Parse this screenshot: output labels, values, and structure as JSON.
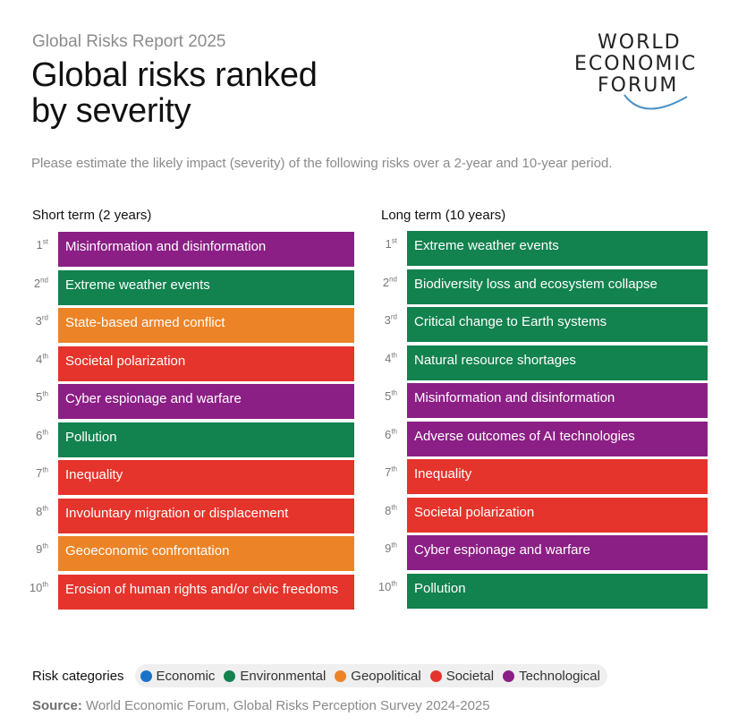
{
  "header": {
    "report_label": "Global Risks Report 2025",
    "title_line1": "Global risks ranked",
    "title_line2": "by severity",
    "subtitle": "Please estimate the likely impact (severity) of the following risks over a 2-year and 10-year period."
  },
  "logo": {
    "line1": "WORLD",
    "line2": "ECONOMIC",
    "line3": "FORUM"
  },
  "colors": {
    "Economic": "#1a73c7",
    "Environmental": "#12824f",
    "Geopolitical": "#ec8427",
    "Societal": "#e5342b",
    "Technological": "#8b1f85"
  },
  "chart_data": {
    "type": "table",
    "title": "Global risks ranked by severity",
    "columns": [
      {
        "key": "short",
        "heading": "Short term (2 years)",
        "rows": [
          {
            "rank": "1",
            "suffix": "st",
            "label": "Misinformation and disinformation",
            "category": "Technological"
          },
          {
            "rank": "2",
            "suffix": "nd",
            "label": "Extreme weather events",
            "category": "Environmental"
          },
          {
            "rank": "3",
            "suffix": "rd",
            "label": "State-based armed conflict",
            "category": "Geopolitical"
          },
          {
            "rank": "4",
            "suffix": "th",
            "label": "Societal polarization",
            "category": "Societal"
          },
          {
            "rank": "5",
            "suffix": "th",
            "label": "Cyber espionage and warfare",
            "category": "Technological"
          },
          {
            "rank": "6",
            "suffix": "th",
            "label": "Pollution",
            "category": "Environmental"
          },
          {
            "rank": "7",
            "suffix": "th",
            "label": "Inequality",
            "category": "Societal"
          },
          {
            "rank": "8",
            "suffix": "th",
            "label": "Involuntary migration or displacement",
            "category": "Societal"
          },
          {
            "rank": "9",
            "suffix": "th",
            "label": "Geoeconomic confrontation",
            "category": "Geopolitical"
          },
          {
            "rank": "10",
            "suffix": "th",
            "label": "Erosion of human rights and/or civic freedoms",
            "category": "Societal"
          }
        ]
      },
      {
        "key": "long",
        "heading": "Long term (10 years)",
        "rows": [
          {
            "rank": "1",
            "suffix": "st",
            "label": "Extreme weather events",
            "category": "Environmental"
          },
          {
            "rank": "2",
            "suffix": "nd",
            "label": "Biodiversity loss and ecosystem collapse",
            "category": "Environmental"
          },
          {
            "rank": "3",
            "suffix": "rd",
            "label": "Critical change to Earth systems",
            "category": "Environmental"
          },
          {
            "rank": "4",
            "suffix": "th",
            "label": "Natural resource shortages",
            "category": "Environmental"
          },
          {
            "rank": "5",
            "suffix": "th",
            "label": "Misinformation and disinformation",
            "category": "Technological"
          },
          {
            "rank": "6",
            "suffix": "th",
            "label": "Adverse outcomes of AI technologies",
            "category": "Technological"
          },
          {
            "rank": "7",
            "suffix": "th",
            "label": "Inequality",
            "category": "Societal"
          },
          {
            "rank": "8",
            "suffix": "th",
            "label": "Societal polarization",
            "category": "Societal"
          },
          {
            "rank": "9",
            "suffix": "th",
            "label": "Cyber espionage and warfare",
            "category": "Technological"
          },
          {
            "rank": "10",
            "suffix": "th",
            "label": "Pollution",
            "category": "Environmental"
          }
        ]
      }
    ]
  },
  "legend": {
    "title": "Risk categories",
    "items": [
      "Economic",
      "Environmental",
      "Geopolitical",
      "Societal",
      "Technological"
    ]
  },
  "source": {
    "label": "Source:",
    "text": " World Economic Forum, Global Risks Perception Survey 2024-2025"
  }
}
